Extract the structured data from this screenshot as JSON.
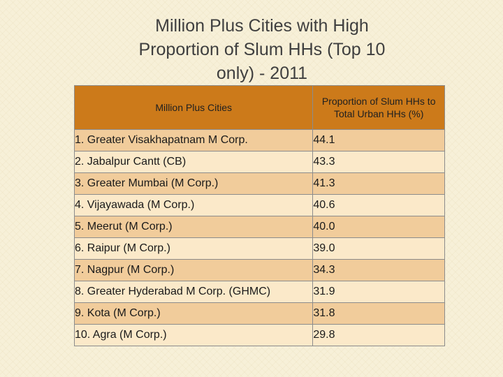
{
  "title": {
    "line1": "Million Plus Cities with High",
    "line2": "Proportion of Slum HHs (Top 10",
    "line3": "only) - 2011"
  },
  "table": {
    "headers": {
      "city": "Million Plus Cities",
      "pct_line1": "Proportion of Slum HHs to",
      "pct_line2": "Total Urban HHs (%)"
    },
    "rows": [
      {
        "city": "1. Greater Visakhapatnam M Corp.",
        "value": "44.1"
      },
      {
        "city": "2. Jabalpur Cantt (CB)",
        "value": "43.3"
      },
      {
        "city": "3. Greater Mumbai (M Corp.)",
        "value": "41.3"
      },
      {
        "city": "4. Vijayawada (M Corp.)",
        "value": "40.6"
      },
      {
        "city": "5. Meerut (M Corp.)",
        "value": "40.0"
      },
      {
        "city": "6. Raipur (M Corp.)",
        "value": "39.0"
      },
      {
        "city": "7. Nagpur (M Corp.)",
        "value": "34.3"
      },
      {
        "city": "8. Greater Hyderabad M Corp. (GHMC)",
        "value": "31.9"
      },
      {
        "city": "9. Kota (M Corp.)",
        "value": "31.8"
      },
      {
        "city": "10. Agra (M Corp.)",
        "value": "29.8"
      }
    ]
  },
  "colors": {
    "header_bg": "#cc7a1a",
    "row_odd_bg": "#f1cc9b",
    "row_even_bg": "#fbe9c9",
    "page_bg": "#f7f0d8"
  }
}
